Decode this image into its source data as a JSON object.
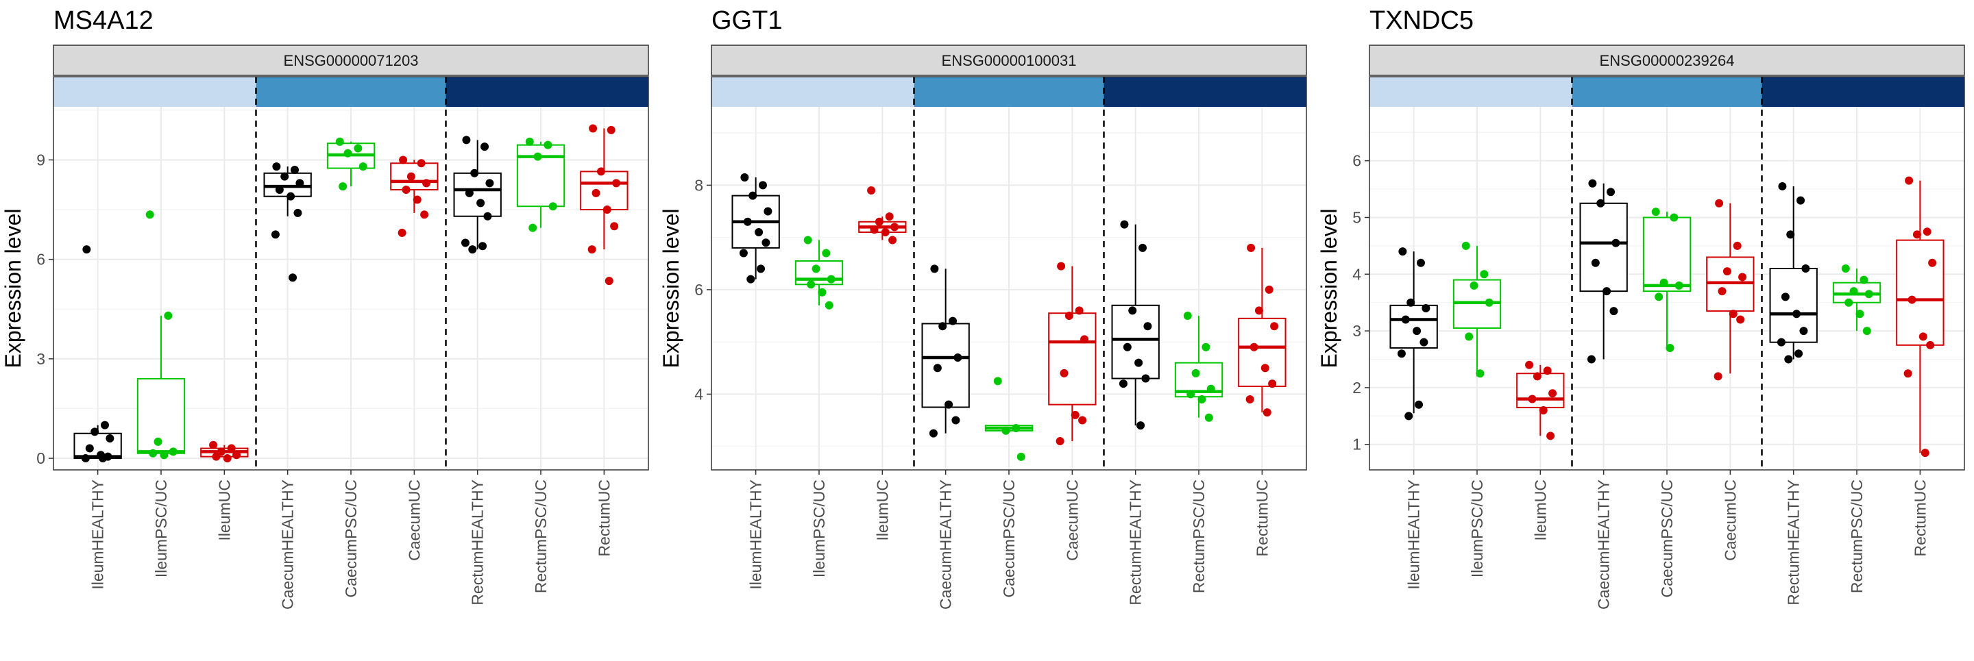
{
  "chart_data": [
    {
      "type": "box",
      "title": "MS4A12",
      "strip": "ENSG00000071203",
      "ylabel": "Expression level",
      "ylim": [
        -0.35,
        10.6
      ],
      "yticks": [
        0,
        3,
        6,
        9
      ],
      "categories": [
        "IleumHEALTHY",
        "IleumPSC/UC",
        "IleumUC",
        "CaecumHEALTHY",
        "CaecumPSC/UC",
        "CaecumUC",
        "RectumHEALTHY",
        "RectumPSC/UC",
        "RectumUC"
      ],
      "boxes": [
        {
          "q1": 0.0,
          "median": 0.05,
          "q3": 0.75,
          "min": 0.0,
          "max": 1.0
        },
        {
          "q1": 0.15,
          "median": 0.2,
          "q3": 2.4,
          "min": 0.1,
          "max": 4.3
        },
        {
          "q1": 0.05,
          "median": 0.2,
          "q3": 0.3,
          "min": 0.0,
          "max": 0.4
        },
        {
          "q1": 7.9,
          "median": 8.2,
          "q3": 8.6,
          "min": 7.3,
          "max": 8.8
        },
        {
          "q1": 8.75,
          "median": 9.15,
          "q3": 9.5,
          "min": 8.2,
          "max": 9.55
        },
        {
          "q1": 8.1,
          "median": 8.35,
          "q3": 8.9,
          "min": 7.4,
          "max": 9.0
        },
        {
          "q1": 7.3,
          "median": 8.1,
          "q3": 8.6,
          "min": 6.3,
          "max": 9.6
        },
        {
          "q1": 7.6,
          "median": 9.1,
          "q3": 9.45,
          "min": 6.95,
          "max": 9.55
        },
        {
          "q1": 7.5,
          "median": 8.3,
          "q3": 8.65,
          "min": 6.3,
          "max": 9.95
        }
      ],
      "points": [
        [
          6.3,
          1.0,
          0.8,
          0.6,
          0.3,
          0.1,
          0.05,
          0.0,
          0.0
        ],
        [
          7.35,
          4.3,
          0.5,
          0.2,
          0.15,
          0.1
        ],
        [
          0.4,
          0.3,
          0.2,
          0.1,
          0.05,
          0.0
        ],
        [
          8.8,
          8.7,
          8.5,
          8.3,
          8.1,
          7.9,
          7.4,
          6.75,
          5.45
        ],
        [
          9.55,
          9.35,
          9.2,
          8.8,
          8.2
        ],
        [
          9.0,
          8.9,
          8.5,
          8.3,
          8.1,
          7.8,
          7.35,
          6.8
        ],
        [
          9.6,
          9.4,
          8.6,
          8.3,
          8.0,
          7.7,
          7.3,
          6.5,
          6.4,
          6.3
        ],
        [
          9.55,
          9.45,
          9.1,
          7.6,
          6.95
        ],
        [
          9.95,
          9.9,
          8.65,
          8.3,
          8.0,
          7.5,
          7.0,
          6.3,
          5.35
        ]
      ]
    },
    {
      "type": "box",
      "title": "GGT1",
      "strip": "ENSG00000100031",
      "ylabel": "Expression level",
      "ylim": [
        2.55,
        9.5
      ],
      "yticks": [
        4,
        6,
        8
      ],
      "categories": [
        "IleumHEALTHY",
        "IleumPSC/UC",
        "IleumUC",
        "CaecumHEALTHY",
        "CaecumPSC/UC",
        "CaecumUC",
        "RectumHEALTHY",
        "RectumPSC/UC",
        "RectumUC"
      ],
      "boxes": [
        {
          "q1": 6.8,
          "median": 7.3,
          "q3": 7.8,
          "min": 6.2,
          "max": 8.15
        },
        {
          "q1": 6.1,
          "median": 6.2,
          "q3": 6.55,
          "min": 5.7,
          "max": 6.95
        },
        {
          "q1": 7.1,
          "median": 7.2,
          "q3": 7.3,
          "min": 6.95,
          "max": 7.4
        },
        {
          "q1": 3.75,
          "median": 4.7,
          "q3": 5.35,
          "min": 3.25,
          "max": 6.4
        },
        {
          "q1": 3.3,
          "median": 3.35,
          "q3": 3.4,
          "min": 3.3,
          "max": 3.4
        },
        {
          "q1": 3.8,
          "median": 5.0,
          "q3": 5.55,
          "min": 3.1,
          "max": 6.45
        },
        {
          "q1": 4.3,
          "median": 5.05,
          "q3": 5.7,
          "min": 3.4,
          "max": 7.25
        },
        {
          "q1": 3.95,
          "median": 4.05,
          "q3": 4.6,
          "min": 3.55,
          "max": 5.5
        },
        {
          "q1": 4.15,
          "median": 4.9,
          "q3": 5.45,
          "min": 3.65,
          "max": 6.8
        }
      ],
      "points": [
        [
          8.15,
          8.0,
          7.8,
          7.5,
          7.3,
          7.1,
          6.9,
          6.7,
          6.4,
          6.2
        ],
        [
          6.95,
          6.7,
          6.4,
          6.2,
          6.1,
          5.95,
          5.7
        ],
        [
          7.9,
          7.4,
          7.3,
          7.2,
          7.15,
          7.1,
          6.95
        ],
        [
          6.4,
          5.4,
          5.3,
          4.7,
          4.5,
          3.8,
          3.5,
          3.25
        ],
        [
          4.25,
          3.35,
          3.3,
          2.8
        ],
        [
          6.45,
          5.6,
          5.5,
          5.05,
          4.4,
          3.6,
          3.5,
          3.1
        ],
        [
          7.25,
          6.8,
          5.6,
          5.3,
          4.9,
          4.6,
          4.3,
          4.2,
          3.4
        ],
        [
          5.5,
          4.9,
          4.4,
          4.1,
          4.0,
          3.9,
          3.55
        ],
        [
          6.8,
          6.0,
          5.6,
          5.3,
          4.9,
          4.5,
          4.2,
          3.9,
          3.65
        ]
      ]
    },
    {
      "type": "box",
      "title": "TXNDC5",
      "strip": "ENSG00000239264",
      "ylabel": "Expression level",
      "ylim": [
        0.55,
        6.95
      ],
      "yticks": [
        1,
        2,
        3,
        4,
        5,
        6
      ],
      "categories": [
        "IleumHEALTHY",
        "IleumPSC/UC",
        "IleumUC",
        "CaecumHEALTHY",
        "CaecumPSC/UC",
        "CaecumUC",
        "RectumHEALTHY",
        "RectumPSC/UC",
        "RectumUC"
      ],
      "boxes": [
        {
          "q1": 2.7,
          "median": 3.2,
          "q3": 3.45,
          "min": 1.55,
          "max": 4.4
        },
        {
          "q1": 3.05,
          "median": 3.5,
          "q3": 3.9,
          "min": 2.2,
          "max": 4.5
        },
        {
          "q1": 1.65,
          "median": 1.8,
          "q3": 2.25,
          "min": 1.15,
          "max": 2.4
        },
        {
          "q1": 3.7,
          "median": 4.55,
          "q3": 5.25,
          "min": 2.5,
          "max": 5.6
        },
        {
          "q1": 3.7,
          "median": 3.8,
          "q3": 5.0,
          "min": 2.7,
          "max": 5.1
        },
        {
          "q1": 3.35,
          "median": 3.85,
          "q3": 4.3,
          "min": 2.25,
          "max": 5.25
        },
        {
          "q1": 2.8,
          "median": 3.3,
          "q3": 4.1,
          "min": 2.5,
          "max": 5.55
        },
        {
          "q1": 3.5,
          "median": 3.65,
          "q3": 3.85,
          "min": 3.0,
          "max": 4.1
        },
        {
          "q1": 2.75,
          "median": 3.55,
          "q3": 4.6,
          "min": 0.85,
          "max": 5.65
        }
      ],
      "points": [
        [
          4.4,
          4.2,
          3.5,
          3.4,
          3.2,
          3.0,
          2.8,
          2.6,
          1.7,
          1.5
        ],
        [
          4.5,
          4.0,
          3.8,
          3.5,
          2.9,
          2.25
        ],
        [
          2.4,
          2.3,
          2.2,
          1.9,
          1.8,
          1.6,
          1.15
        ],
        [
          5.6,
          5.45,
          5.25,
          4.55,
          4.2,
          3.7,
          3.35,
          2.5
        ],
        [
          5.1,
          5.0,
          3.85,
          3.8,
          3.6,
          2.7
        ],
        [
          5.25,
          4.5,
          4.05,
          3.95,
          3.7,
          3.3,
          3.2,
          2.2
        ],
        [
          5.55,
          5.3,
          4.7,
          4.1,
          3.6,
          3.3,
          3.0,
          2.8,
          2.6,
          2.5
        ],
        [
          4.1,
          3.9,
          3.7,
          3.65,
          3.5,
          3.3,
          3.0
        ],
        [
          5.65,
          4.75,
          4.7,
          4.2,
          3.55,
          2.9,
          2.75,
          2.25,
          0.85
        ]
      ]
    }
  ],
  "colors": {
    "category": [
      "#000000",
      "#00c800",
      "#d40000",
      "#000000",
      "#00c800",
      "#d40000",
      "#000000",
      "#00c800",
      "#d40000"
    ],
    "region_bands": [
      "#c6dbef",
      "#4292c6",
      "#08306b"
    ],
    "strip_fill": "#d9d9d9",
    "grid": "#ebebeb"
  }
}
